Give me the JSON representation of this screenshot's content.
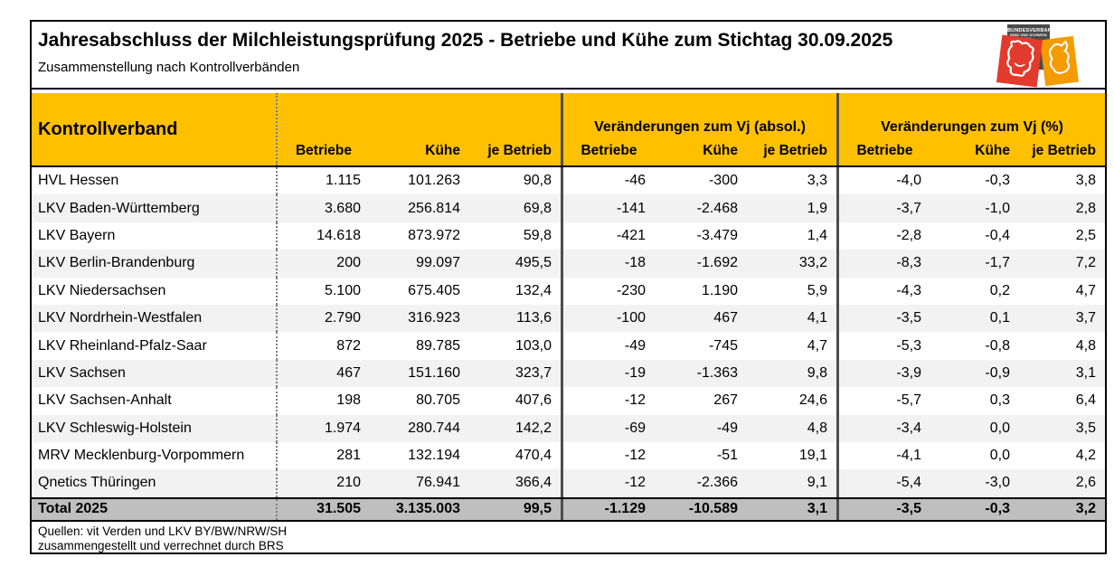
{
  "page": {
    "title": "Jahresabschluss der Milchleistungsprüfung 2025 - Betriebe und Kühe zum Stichtag 30.09.2025",
    "subtitle": "Zusammenstellung nach Kontrollverbänden",
    "logo": {
      "line1": "BUNDESVERBAND",
      "line2": "RIND UND SCHWEIN E.V.",
      "tiles": [
        "gray-text-tile",
        "red-cow-tile",
        "orange-pig-tile"
      ]
    },
    "footer_line1": "Quellen: vit Verden und LKV BY/BW/NRW/SH",
    "footer_line2": "zusammengestellt und verrechnet durch BRS"
  },
  "table": {
    "corner_label": "Kontrollverband",
    "group_absol_title": "Veränderungen zum Vj (absol.)",
    "group_pct_title": "Veränderungen zum Vj (%)",
    "sub_headers": [
      "Betriebe",
      "Kühe",
      "je Betrieb"
    ],
    "rows": [
      {
        "name": "HVL Hessen",
        "values": [
          "1.115",
          "101.263",
          "90,8",
          "-46",
          "-300",
          "3,3",
          "-4,0",
          "-0,3",
          "3,8"
        ]
      },
      {
        "name": "LKV Baden-Württemberg",
        "values": [
          "3.680",
          "256.814",
          "69,8",
          "-141",
          "-2.468",
          "1,9",
          "-3,7",
          "-1,0",
          "2,8"
        ]
      },
      {
        "name": "LKV Bayern",
        "values": [
          "14.618",
          "873.972",
          "59,8",
          "-421",
          "-3.479",
          "1,4",
          "-2,8",
          "-0,4",
          "2,5"
        ]
      },
      {
        "name": "LKV Berlin-Brandenburg",
        "values": [
          "200",
          "99.097",
          "495,5",
          "-18",
          "-1.692",
          "33,2",
          "-8,3",
          "-1,7",
          "7,2"
        ]
      },
      {
        "name": "LKV Niedersachsen",
        "values": [
          "5.100",
          "675.405",
          "132,4",
          "-230",
          "1.190",
          "5,9",
          "-4,3",
          "0,2",
          "4,7"
        ]
      },
      {
        "name": "LKV Nordrhein-Westfalen",
        "values": [
          "2.790",
          "316.923",
          "113,6",
          "-100",
          "467",
          "4,1",
          "-3,5",
          "0,1",
          "3,7"
        ]
      },
      {
        "name": "LKV Rheinland-Pfalz-Saar",
        "values": [
          "872",
          "89.785",
          "103,0",
          "-49",
          "-745",
          "4,7",
          "-5,3",
          "-0,8",
          "4,8"
        ]
      },
      {
        "name": "LKV Sachsen",
        "values": [
          "467",
          "151.160",
          "323,7",
          "-19",
          "-1.363",
          "9,8",
          "-3,9",
          "-0,9",
          "3,1"
        ]
      },
      {
        "name": "LKV Sachsen-Anhalt",
        "values": [
          "198",
          "80.705",
          "407,6",
          "-12",
          "267",
          "24,6",
          "-5,7",
          "0,3",
          "6,4"
        ]
      },
      {
        "name": "LKV Schleswig-Holstein",
        "values": [
          "1.974",
          "280.744",
          "142,2",
          "-69",
          "-49",
          "4,8",
          "-3,4",
          "0,0",
          "3,5"
        ]
      },
      {
        "name": "MRV Mecklenburg-Vorpommern",
        "values": [
          "281",
          "132.194",
          "470,4",
          "-12",
          "-51",
          "19,1",
          "-4,1",
          "0,0",
          "4,2"
        ]
      },
      {
        "name": "Qnetics Thüringen",
        "values": [
          "210",
          "76.941",
          "366,4",
          "-12",
          "-2.366",
          "9,1",
          "-5,4",
          "-3,0",
          "2,6"
        ]
      }
    ],
    "total": {
      "name": "Total 2025",
      "values": [
        "31.505",
        "3.135.003",
        "99,5",
        "-1.129",
        "-10.589",
        "3,1",
        "-3,5",
        "-0,3",
        "3,2"
      ]
    }
  },
  "colors": {
    "header_bg": "#FFC000",
    "total_row_bg": "#BFBFBF",
    "alt_row_bg": "#F2F2F2",
    "border": "#000000",
    "group_divider": "#4D4D4D",
    "logo_gray": "#4A4A4A",
    "logo_red": "#E23B2E",
    "logo_orange": "#F49B00"
  }
}
